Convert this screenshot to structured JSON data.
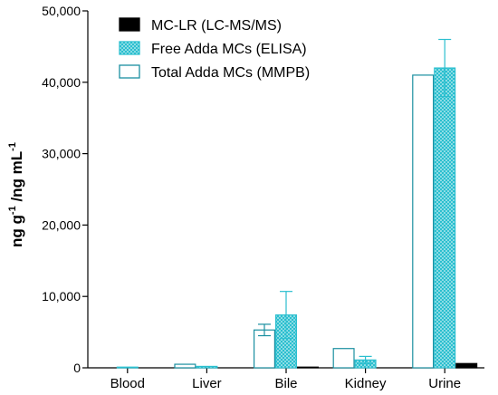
{
  "chart_data": {
    "type": "bar",
    "title": "",
    "xlabel": "",
    "ylabel": {
      "part1": "ng g",
      "sup1": "-1",
      "part2": " /ng mL",
      "sup2": "-1"
    },
    "ylim": [
      0,
      50000
    ],
    "yticks": [
      0,
      10000,
      20000,
      30000,
      40000,
      50000
    ],
    "ytick_labels": [
      "0",
      "10,000",
      "20,000",
      "30,000",
      "40,000",
      "50,000"
    ],
    "categories": [
      "Blood",
      "Liver",
      "Bile",
      "Kidney",
      "Urine"
    ],
    "grid": false,
    "legend_placement": "top-left",
    "series": [
      {
        "name": "Total Adda MCs (MMPB)",
        "style": "open",
        "color": "#1a8fa0",
        "values": [
          0,
          500,
          5300,
          2700,
          41000
        ],
        "errors": [
          0,
          0,
          800,
          0,
          0
        ]
      },
      {
        "name": "Free Adda MCs (ELISA)",
        "style": "dotted",
        "color": "#2bbfcf",
        "values": [
          100,
          200,
          7400,
          1100,
          42000
        ],
        "errors": [
          0,
          0,
          3300,
          500,
          4000
        ]
      },
      {
        "name": "MC-LR (LC-MS/MS)",
        "style": "solid",
        "color": "#000000",
        "values": [
          0,
          0,
          100,
          0,
          600
        ],
        "errors": [
          0,
          0,
          0,
          0,
          0
        ]
      }
    ],
    "legend_order": [
      2,
      1,
      0
    ]
  }
}
